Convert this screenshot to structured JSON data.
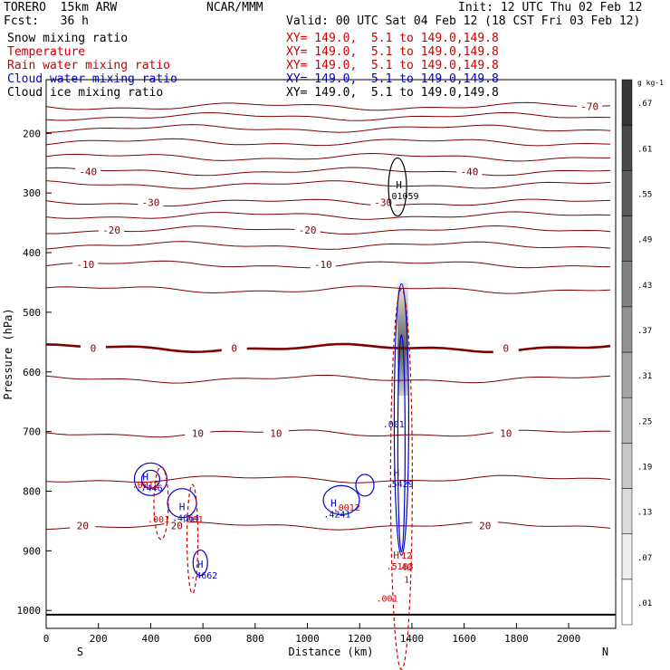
{
  "header": {
    "model": "TORERO  15km ARW",
    "center": "NCAR/MMM",
    "init": "Init: 12 UTC Thu 02 Feb 12",
    "fcst": "Fcst:   36 h",
    "valid": "Valid: 00 UTC Sat 04 Feb 12 (18 CST Fri 03 Feb 12)"
  },
  "legend": [
    {
      "field": "Snow mixing ratio",
      "xy": "XY= 149.0,  5.1 to 149.0,149.8",
      "color": "#000000"
    },
    {
      "field": "Temperature",
      "xy": "XY= 149.0,  5.1 to 149.0,149.8",
      "color": "#cc0000"
    },
    {
      "field": "Rain water mixing ratio",
      "xy": "XY= 149.0,  5.1 to 149.0,149.8",
      "color": "#cc0000"
    },
    {
      "field": "Cloud water mixing ratio",
      "xy": "XY= 149.0,  5.1 to 149.0,149.8",
      "color": "#0000cc"
    },
    {
      "field": "Cloud ice mixing ratio",
      "xy": "XY= 149.0,  5.1 to 149.0,149.8",
      "color": "#000000"
    }
  ],
  "chart_data": {
    "type": "cross-section contour",
    "xlabel": "Distance (km)",
    "ylabel": "Pressure (hPa)",
    "x_ticks": [
      0,
      200,
      400,
      600,
      800,
      1000,
      1200,
      1400,
      1600,
      1800,
      2000
    ],
    "y_ticks": [
      200,
      300,
      400,
      500,
      600,
      700,
      800,
      900,
      1000
    ],
    "xlim": [
      0,
      2180
    ],
    "ylim": [
      1030,
      110
    ],
    "end_labels": {
      "left": "S",
      "right": "N"
    },
    "colorbar": {
      "unit": "g kg-1",
      "labels": [
        ".01",
        ".07",
        ".13",
        ".19",
        ".25",
        ".31",
        ".37",
        ".43",
        ".49",
        ".55",
        ".61",
        ".67"
      ]
    },
    "isotherms": [
      {
        "value": -70,
        "label": "-70",
        "p": 155,
        "label_x": 2080
      },
      {
        "value": -60,
        "label": "",
        "p": 172
      },
      {
        "value": -55,
        "label": "",
        "p": 192
      },
      {
        "value": -50,
        "label": "",
        "p": 215
      },
      {
        "value": -45,
        "label": "",
        "p": 240
      },
      {
        "value": -40,
        "label": "-40",
        "p": 264,
        "label_x": 160,
        "label_x2": 1620
      },
      {
        "value": -35,
        "label": "",
        "p": 286
      },
      {
        "value": -30,
        "label": "-30",
        "p": 316,
        "label_x": 400,
        "label_x2": 1290
      },
      {
        "value": -25,
        "label": "",
        "p": 338
      },
      {
        "value": -20,
        "label": "-20",
        "p": 362,
        "label_x": 250,
        "label_x2": 1000
      },
      {
        "value": -15,
        "label": "",
        "p": 388
      },
      {
        "value": -10,
        "label": "-10",
        "p": 420,
        "label_x": 150,
        "label_x2": 1060
      },
      {
        "value": -5,
        "label": "",
        "p": 462
      },
      {
        "value": 0,
        "label": "0",
        "p": 560,
        "label_x": 180,
        "label_x2": 720,
        "label_x3": 1760
      },
      {
        "value": 5,
        "label": "",
        "p": 612
      },
      {
        "value": 10,
        "label": "10",
        "p": 703,
        "label_x": 580,
        "label_x2": 880,
        "label_x3": 1760
      },
      {
        "value": 15,
        "label": "",
        "p": 780
      },
      {
        "value": 20,
        "label": "20",
        "p": 858,
        "label_x": 140,
        "label_x2": 500,
        "label_x3": 1680
      }
    ],
    "lows": [],
    "highs": [
      {
        "label": "H",
        "value": ".01059",
        "x": 1350,
        "p": 292,
        "color": "#000000"
      },
      {
        "label": "H",
        "value": ".7446",
        "x": 380,
        "p": 782,
        "color": "#0000cc"
      },
      {
        "label": "H",
        "value": ".4664",
        "x": 520,
        "p": 832,
        "color": "#0000cc"
      },
      {
        "label": "H",
        "value": ".4662",
        "x": 590,
        "p": 928,
        "color": "#0000cc"
      },
      {
        "label": "H",
        "value": ".4241",
        "x": 1100,
        "p": 826,
        "color": "#0000cc"
      },
      {
        "label": "H",
        "value": ".5429",
        "x": 1340,
        "p": 775,
        "color": "#0000cc"
      },
      {
        "label": "H",
        "value": ".5183",
        "x": 1340,
        "p": 913,
        "color": "#cc0000"
      }
    ],
    "contour_labels": [
      {
        "text": ".0012",
        "x": 380,
        "p": 795,
        "color": "#cc0000"
      },
      {
        "text": ".001",
        "x": 430,
        "p": 852,
        "color": "#cc0000"
      },
      {
        "text": ".001",
        "x": 560,
        "p": 852,
        "color": "#cc0000"
      },
      {
        "text": ".0012",
        "x": 1150,
        "p": 833,
        "color": "#cc0000"
      },
      {
        "text": ".001",
        "x": 1330,
        "p": 693,
        "color": "#0000cc"
      },
      {
        "text": "12",
        "x": 1380,
        "p": 913,
        "color": "#cc0000"
      },
      {
        "text": "40",
        "x": 1380,
        "p": 933,
        "color": "#cc0000"
      },
      {
        "text": "1",
        "x": 1380,
        "p": 953,
        "color": "#cc0000"
      },
      {
        "text": ".001",
        "x": 1305,
        "p": 985,
        "color": "#cc0000"
      }
    ]
  }
}
